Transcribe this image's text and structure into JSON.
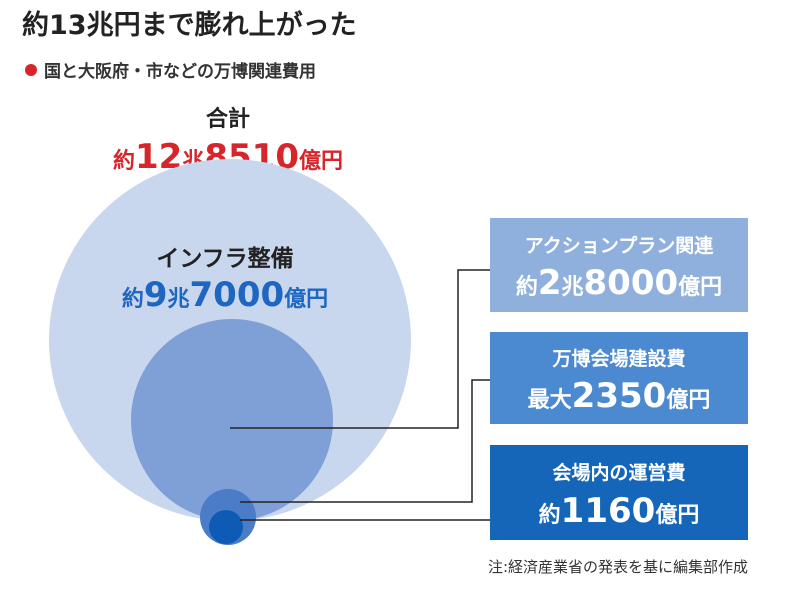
{
  "header": {
    "title": "約13兆円まで膨れ上がった",
    "subtitle": "国と大阪府・市などの万博関連費用"
  },
  "total": {
    "label": "合計",
    "amount": [
      "約",
      "12",
      "兆",
      "8510",
      "億円"
    ]
  },
  "infra": {
    "label": "インフラ整備",
    "amount": [
      "約",
      "9",
      "兆",
      "7000",
      "億円"
    ]
  },
  "boxes": [
    {
      "label": "アクションプラン関連",
      "amount": [
        "約",
        "2",
        "兆",
        "8000",
        "億円"
      ]
    },
    {
      "label": "万博会場建設費",
      "amount": [
        "最大",
        "2350",
        "億円"
      ]
    },
    {
      "label": "会場内の運営費",
      "amount": [
        "約",
        "1160",
        "億円"
      ]
    }
  ],
  "note": "注:経済産業省の発表を基に編集部作成"
}
